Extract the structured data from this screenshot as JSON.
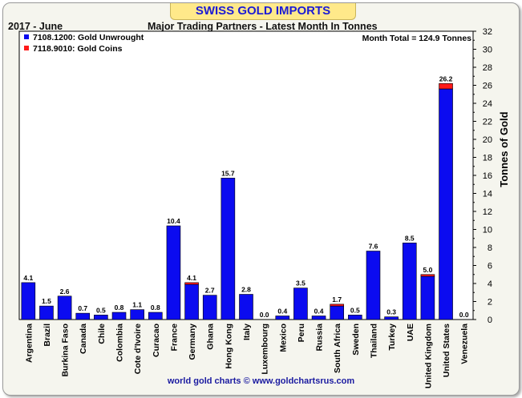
{
  "header": {
    "title": "SWISS GOLD IMPORTS",
    "period": "2017 - June",
    "subtitle": "Major Trading Partners - Latest Month In Tonnes"
  },
  "footer": "world gold charts © www.goldchartsrus.com",
  "colors": {
    "unwrought": "#0b0bf0",
    "coins": "#ff1a1a",
    "background": "#f5f5ee",
    "banner": "#ffe98a",
    "title_text": "#1b1bd6"
  },
  "chart_data": {
    "type": "bar",
    "stacked": true,
    "categories": [
      "Argentina",
      "Brazil",
      "Burkina Faso",
      "Canada",
      "Chile",
      "Colombia",
      "Cote d'Ivoire",
      "Curacao",
      "France",
      "Germany",
      "Ghana",
      "Hong Kong",
      "Italy",
      "Luxembourg",
      "Mexico",
      "Peru",
      "Russia",
      "South Africa",
      "Sweden",
      "Thailand",
      "Turkey",
      "UAE",
      "United Kingdom",
      "United States",
      "Venezuela"
    ],
    "series": [
      {
        "name": "7108.1200: Gold Unwrought",
        "color": "#0b0bf0",
        "values": [
          4.1,
          1.5,
          2.6,
          0.7,
          0.5,
          0.8,
          1.1,
          0.8,
          10.4,
          3.9,
          2.7,
          15.7,
          2.8,
          0.0,
          0.4,
          3.5,
          0.4,
          1.5,
          0.5,
          7.6,
          0.3,
          8.5,
          4.8,
          25.6,
          0.0
        ]
      },
      {
        "name": "7118.9010: Gold Coins",
        "color": "#ff1a1a",
        "values": [
          0,
          0,
          0,
          0,
          0,
          0,
          0,
          0,
          0,
          0.2,
          0,
          0,
          0,
          0,
          0,
          0,
          0,
          0.2,
          0,
          0,
          0,
          0,
          0.2,
          0.6,
          0
        ]
      }
    ],
    "totals": [
      "4.1",
      "1.5",
      "2.6",
      "0.7",
      "0.5",
      "0.8",
      "1.1",
      "0.8",
      "10.4",
      "4.1",
      "2.7",
      "15.7",
      "2.8",
      "0.0",
      "0.4",
      "3.5",
      "0.4",
      "1.7",
      "0.5",
      "7.6",
      "0.3",
      "8.5",
      "5.0",
      "26.2",
      "0.0"
    ],
    "ylabel": "Tonnes of Gold",
    "ylim": [
      0,
      32
    ],
    "yticks": [
      0,
      2,
      4,
      6,
      8,
      10,
      12,
      14,
      16,
      18,
      20,
      22,
      24,
      26,
      28,
      30,
      32
    ],
    "annotation": "Month Total = 124.9 Tonnes",
    "legend_position": "top-left",
    "grid": false
  }
}
